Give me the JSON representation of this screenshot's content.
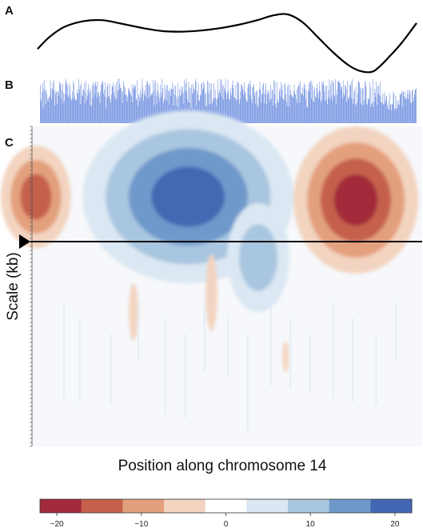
{
  "panels": {
    "a": {
      "letter": "A"
    },
    "b": {
      "letter": "B"
    },
    "c": {
      "letter": "C"
    }
  },
  "chart_data": [
    {
      "type": "line",
      "panel": "A",
      "x": [
        0,
        0.03,
        0.07,
        0.12,
        0.17,
        0.22,
        0.28,
        0.33,
        0.38,
        0.43,
        0.48,
        0.53,
        0.58,
        0.62,
        0.66,
        0.7,
        0.74,
        0.78,
        0.82,
        0.85,
        0.88,
        0.9,
        0.93,
        0.96,
        1.0
      ],
      "y": [
        0.4,
        0.6,
        0.78,
        0.88,
        0.9,
        0.84,
        0.76,
        0.71,
        0.7,
        0.72,
        0.76,
        0.82,
        0.9,
        0.98,
        1.0,
        0.86,
        0.6,
        0.34,
        0.12,
        0.02,
        0.0,
        0.08,
        0.28,
        0.5,
        0.85
      ],
      "color": "#000000"
    },
    {
      "type": "bar",
      "panel": "B",
      "color": "#6f8fe0",
      "values": [
        0.83,
        0.52,
        0.46,
        0.67,
        0.87,
        0.33,
        0.74,
        0.93,
        0.69,
        0.41,
        0.74,
        0.64,
        0.49,
        0.55,
        0.47,
        0.56,
        0.6,
        0.92,
        0.74,
        0.52,
        0.75,
        0.87,
        0.71,
        0.94,
        0.38,
        0.64,
        0.72,
        0.67,
        0.41,
        0.67,
        0.7,
        0.59,
        0.89,
        0.87,
        0.83,
        0.53,
        0.71,
        0.86,
        0.43,
        0.65,
        0.48,
        0.63,
        0.9,
        0.95,
        0.86,
        0.81,
        0.6,
        0.55,
        0.86,
        0.6,
        0.79,
        0.49,
        0.52,
        0.68,
        0.53,
        0.91,
        0.85,
        0.58,
        0.5,
        0.52,
        0.5,
        0.73,
        0.64,
        0.65,
        0.95,
        0.73,
        0.81,
        0.41,
        0.87,
        0.61,
        0.58,
        0.72,
        0.73,
        0.87,
        0.43,
        0.66,
        0.91,
        0.5,
        0.59,
        0.72,
        0.84,
        0.65,
        0.76,
        0.39,
        0.7,
        0.37,
        0.82,
        0.55,
        0.88,
        0.81,
        0.62,
        0.84,
        0.89,
        0.81,
        0.55,
        0.9,
        0.66,
        0.65,
        0.59,
        0.43,
        0.69,
        0.83,
        0.89,
        0.85,
        0.91,
        0.64,
        0.73,
        0.57,
        0.89,
        0.34,
        0.54,
        0.79,
        0.85,
        0.58,
        0.58,
        0.86,
        0.51,
        0.44,
        0.62,
        0.79,
        0.79,
        0.88,
        0.67,
        0.57,
        0.81,
        0.52,
        0.89,
        0.52,
        0.7,
        0.95,
        0.72,
        0.96,
        0.84,
        0.75,
        0.76,
        0.68,
        0.44,
        0.68,
        0.9,
        0.81,
        0.62,
        0.76,
        0.6,
        0.62,
        0.46,
        0.57,
        0.76,
        0.74,
        0.66,
        0.7,
        0.62,
        0.58,
        0.84,
        0.45,
        0.76,
        0.81,
        0.74,
        0.83,
        0.8,
        0.49,
        0.53,
        0.93,
        0.38,
        0.63,
        0.58,
        0.48,
        0.72,
        0.56,
        0.65,
        0.95,
        0.78,
        0.49,
        0.64,
        0.71,
        0.59,
        0.83,
        0.55,
        0.91,
        0.89,
        0.83,
        0.54,
        0.8,
        0.86,
        0.59,
        0.61,
        0.66,
        0.63,
        0.94,
        0.7,
        0.38,
        0.87,
        0.92,
        0.6,
        0.41,
        0.71,
        0.86,
        0.66,
        0.56,
        0.47,
        0.83,
        0.56,
        0.66,
        0.95,
        0.76,
        0.43,
        0.49,
        0.82,
        0.54,
        0.72,
        0.83,
        0.49,
        0.82,
        0.71,
        0.4,
        0.68,
        0.75,
        0.58,
        0.72,
        0.74,
        0.87,
        0.73,
        0.38,
        0.82,
        0.62,
        0.8,
        0.58,
        0.36,
        0.53,
        0.87,
        0.34,
        0.58,
        0.73,
        0.59,
        0.8,
        0.62,
        0.72,
        0.79,
        0.65,
        0.42,
        0.93,
        0.7,
        0.86,
        0.96,
        0.68,
        0.51,
        0.45,
        0.88,
        0.77,
        0.44,
        0.76,
        0.33,
        0.83,
        0.64,
        0.85,
        0.65,
        0.75,
        0.73,
        0.9,
        0.95,
        0.38,
        0.69,
        0.61,
        0.86,
        0.5,
        0.48,
        0.62,
        0.6,
        0.85,
        0.88,
        0.72,
        0.75,
        0.91,
        0.85,
        0.62,
        0.37,
        0.68,
        0.37,
        0.92,
        0.89,
        0.64,
        0.41,
        0.86,
        0.71,
        0.42,
        0.86,
        0.42,
        0.5,
        0.54,
        0.86,
        0.55,
        0.73,
        0.54,
        0.38,
        0.52,
        0.95,
        0.56,
        0.65,
        0.72,
        0.65,
        0.96,
        0.93,
        0.57,
        0.84,
        0.81,
        0.5,
        0.77,
        0.71,
        0.96,
        0.66,
        0.53,
        0.64,
        0.93,
        0.71,
        0.51,
        0.51,
        0.66,
        0.75,
        0.6,
        0.83,
        0.92,
        0.75,
        0.56,
        0.55,
        0.83,
        0.52,
        0.49,
        0.89,
        0.52,
        0.89,
        0.85,
        0.42,
        0.52,
        0.68,
        0.84,
        0.82,
        0.79,
        0.72,
        0.61,
        0.88,
        0.69,
        0.65,
        0.53,
        0.46,
        0.48,
        0.77,
        0.84,
        0.86,
        0.6,
        0.92,
        0.81,
        0.52,
        0.43,
        0.78,
        0.78,
        0.84,
        0.59,
        0.67,
        0.42,
        0.7,
        0.7,
        0.39,
        0.35,
        0.57,
        0.73,
        0.89,
        0.71,
        0.45,
        0.62,
        0.64,
        0.83,
        0.87,
        0.43,
        0.63,
        0.73,
        0.87,
        0.4,
        0.62,
        0.67,
        0.72,
        0.65,
        0.46,
        0.53,
        0.83,
        0.52,
        0.73,
        0.7,
        0.39,
        0.92,
        0.62,
        0.91,
        0.42,
        0.34,
        0.88,
        0.44,
        0.51,
        0.45,
        0.7,
        0.76,
        0.57,
        0.89,
        0.71,
        0.83,
        0.52,
        0.53,
        0.49,
        0.83,
        0.87,
        0.63,
        0.47,
        0.37,
        0.79,
        0.84,
        0.36,
        0.6,
        0.82,
        0.7,
        0.61,
        0.6,
        0.56,
        0.55,
        0.7,
        0.82,
        0.64,
        0.61,
        0.51,
        0.72,
        0.43,
        0.79,
        0.8,
        0.85,
        0.45,
        0.91,
        0.66,
        0.61,
        0.64,
        0.77,
        0.59,
        0.87,
        0.74,
        0.83,
        0.51,
        0.7,
        0.35,
        0.34,
        0.71,
        0.85,
        0.69,
        0.9,
        0.9,
        0.53,
        0.92,
        0.81,
        0.46,
        0.72,
        0.47,
        0.78,
        0.57,
        0.55,
        0.76,
        0.85,
        0.65,
        0.53,
        0.71,
        0.89,
        0.69,
        0.45,
        0.5,
        0.89,
        0.85,
        0.91,
        0.81,
        0.68,
        0.49,
        0.8,
        0.49,
        0.82,
        0.41,
        0.56,
        0.72,
        0.94,
        0.52,
        0.84,
        0.57,
        0.92,
        0.49,
        0.92,
        0.87,
        0.61,
        0.58,
        0.95,
        0.42,
        0.72,
        0.61,
        0.9,
        0.89,
        0.93,
        0.86,
        0.87,
        0.71,
        0.79,
        0.79,
        0.54,
        0.92,
        0.64,
        0.59,
        0.83,
        0.79,
        0.74,
        0.46,
        0.91,
        0.51,
        0.55,
        0.57,
        0.83,
        0.81,
        0.89,
        0.54,
        0.95,
        0.42,
        0.51,
        0.67,
        0.73,
        0.41,
        0.79,
        0.37,
        0.44,
        0.65,
        0.9,
        0.89,
        0.87,
        0.77,
        0.43,
        0.74,
        0.4,
        0.76,
        0.76,
        0.39,
        0.5,
        0.91,
        0.87,
        0.79,
        0.42,
        0.39,
        0.53,
        0.5,
        0.54,
        0.88,
        0.35,
        0.77,
        0.42,
        0.43,
        0.95,
        0.35,
        0.47,
        0.74,
        0.66,
        0.56,
        0.89,
        0.4,
        0.79,
        0.64,
        0.81,
        0.6,
        0.9,
        0.58,
        0.44,
        0.45,
        0.63,
        0.4,
        0.42,
        0.67,
        0.43,
        0.5,
        0.6,
        0.59,
        0.38,
        0.31,
        0.47,
        0.29,
        0.64,
        0.39,
        0.42,
        0.28,
        0.42,
        0.4,
        0.68,
        0.63,
        0.31,
        0.32,
        0.59,
        0.28,
        0.5,
        0.33,
        0.41,
        0.48,
        0.4,
        0.64,
        0.6,
        0.64,
        0.7,
        0.35,
        0.67,
        0.68,
        0.58,
        0.69,
        0.53,
        0.55,
        0.52,
        0.72,
        0.64,
        0.52,
        0.72,
        0.62,
        0.71,
        0.45,
        0.43,
        0.7,
        0.73,
        0.46,
        0.55,
        0.62,
        0.72,
        0.73,
        0.75
      ]
    },
    {
      "type": "heatmap",
      "panel": "C",
      "ylabel": "Scale (kb)",
      "xlabel": "Position along chromosome 14",
      "marker_line_level": 0.5,
      "regions": [
        {
          "name": "left-red",
          "cx": 0.01,
          "cy": 0.22,
          "rx": 0.09,
          "ry": 0.16,
          "value": -17
        },
        {
          "name": "center-blue",
          "cx": 0.4,
          "cy": 0.22,
          "rx": 0.27,
          "ry": 0.27,
          "value": 19
        },
        {
          "name": "blue-tail",
          "cx": 0.58,
          "cy": 0.41,
          "rx": 0.08,
          "ry": 0.17,
          "value": 9
        },
        {
          "name": "right-red",
          "cx": 0.83,
          "cy": 0.23,
          "rx": 0.16,
          "ry": 0.23,
          "value": -21
        },
        {
          "name": "red-spike-center",
          "cx": 0.46,
          "cy": 0.52,
          "rx": 0.015,
          "ry": 0.12,
          "value": -6
        },
        {
          "name": "red-spike-left",
          "cx": 0.26,
          "cy": 0.58,
          "rx": 0.012,
          "ry": 0.09,
          "value": -5
        },
        {
          "name": "red-spike-right",
          "cx": 0.65,
          "cy": 0.72,
          "rx": 0.008,
          "ry": 0.05,
          "value": -4
        }
      ],
      "colorbar": {
        "min": -22,
        "max": 22,
        "tick_values": [
          -20,
          -10,
          0,
          10,
          20
        ],
        "tick_labels": [
          "−20",
          "−10",
          "0",
          "10",
          "20"
        ],
        "colors": [
          "#a32a3a",
          "#c5604d",
          "#e3a07d",
          "#f3d4c0",
          "#ffffff",
          "#dbe7f2",
          "#a9c6e0",
          "#6f99cb",
          "#4467b3"
        ]
      }
    }
  ]
}
